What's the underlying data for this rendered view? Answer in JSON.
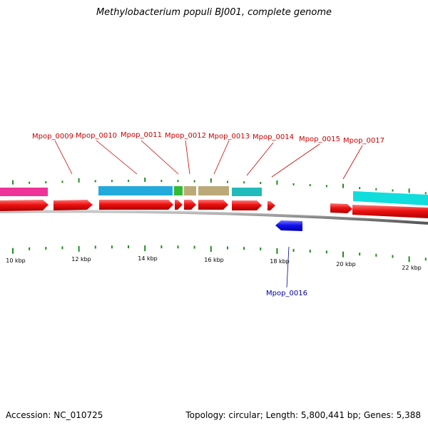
{
  "title": "Methylobacterium populi BJ001, complete genome",
  "footer": {
    "accession": "Accession: NC_010725",
    "summary": "Topology: circular; Length: 5,800,441 bp; Genes: 5,388"
  },
  "colors": {
    "forward_gene": "#ee1111",
    "reverse_gene": "#1111ee",
    "label_forward": "#cc0000",
    "label_reverse": "#000099",
    "tick": "#228b22",
    "backbone": "#888888",
    "magenta": "#ee3399",
    "sky": "#22aadd",
    "green": "#33bb33",
    "khaki": "#bbaa77",
    "teal": "#22bbbb",
    "cyan": "#11dddd"
  },
  "scale": {
    "labels": [
      "10 kbp",
      "12 kbp",
      "14 kbp",
      "16 kbp",
      "18 kbp",
      "20 kbp",
      "22 kbp"
    ]
  },
  "genes": [
    {
      "name": "Mpop_0009"
    },
    {
      "name": "Mpop_0010"
    },
    {
      "name": "Mpop_0011"
    },
    {
      "name": "Mpop_0012"
    },
    {
      "name": "Mpop_0013"
    },
    {
      "name": "Mpop_0014"
    },
    {
      "name": "Mpop_0015"
    },
    {
      "name": "Mpop_0017"
    },
    {
      "name": "Mpop_0016"
    }
  ]
}
